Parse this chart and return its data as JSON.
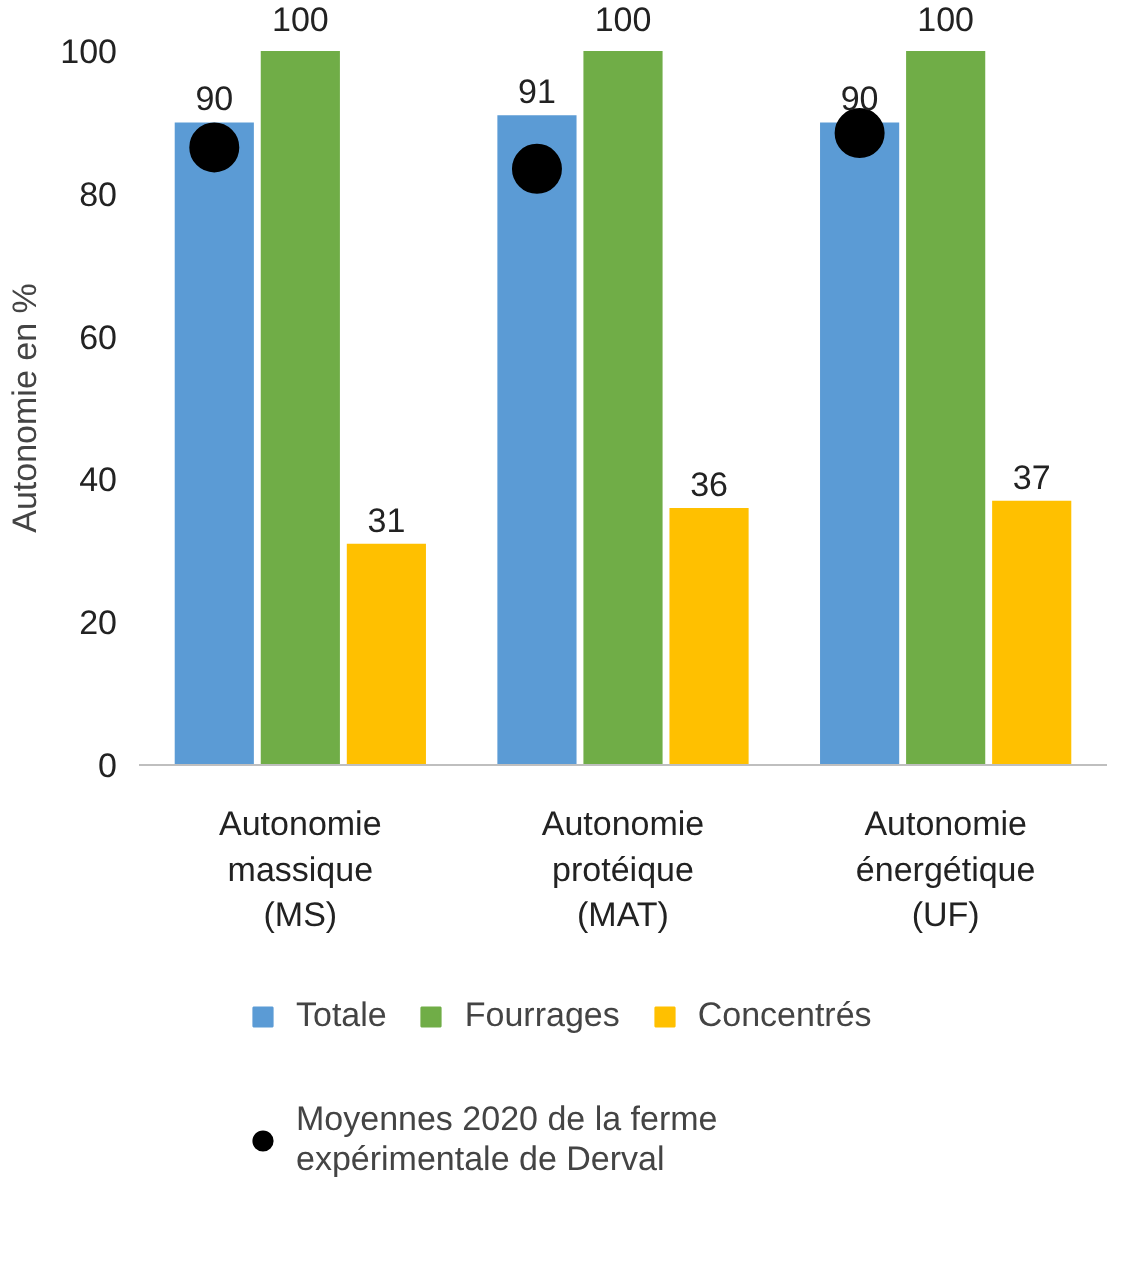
{
  "chart_data": {
    "type": "bar",
    "ylabel": "Autonomie en %",
    "categories": [
      "Autonomie massique (MS)",
      "Autonomie protéique (MAT)",
      "Autonomie énergétique (UF)"
    ],
    "series": [
      {
        "name": "Totale",
        "color": "#5b9bd5",
        "values": [
          90,
          91,
          90
        ],
        "value_labels": [
          "90",
          "91",
          "90"
        ]
      },
      {
        "name": "Fourrages",
        "color": "#70ad47",
        "values": [
          100,
          100,
          100
        ],
        "value_labels": [
          "100",
          "100",
          "100"
        ]
      },
      {
        "name": "Concentrés",
        "color": "#ffc000",
        "values": [
          31,
          36,
          37
        ],
        "value_labels": [
          "31",
          "36",
          "37"
        ]
      },
      {
        "name": "Moyennes 2020 de la ferme expérimentale de Derval",
        "type": "scatter",
        "marker": "circle",
        "color": "#000000",
        "x": [
          "Autonomie massique (MS)",
          "Autonomie protéique (MAT)",
          "Autonomie énergétique (UF)"
        ],
        "values": [
          86.5,
          83.5,
          88.5
        ]
      }
    ],
    "ylim": [
      0,
      100
    ],
    "yticks": [
      0,
      20,
      40,
      60,
      80,
      100
    ],
    "grid": false,
    "legend": "bottom"
  }
}
